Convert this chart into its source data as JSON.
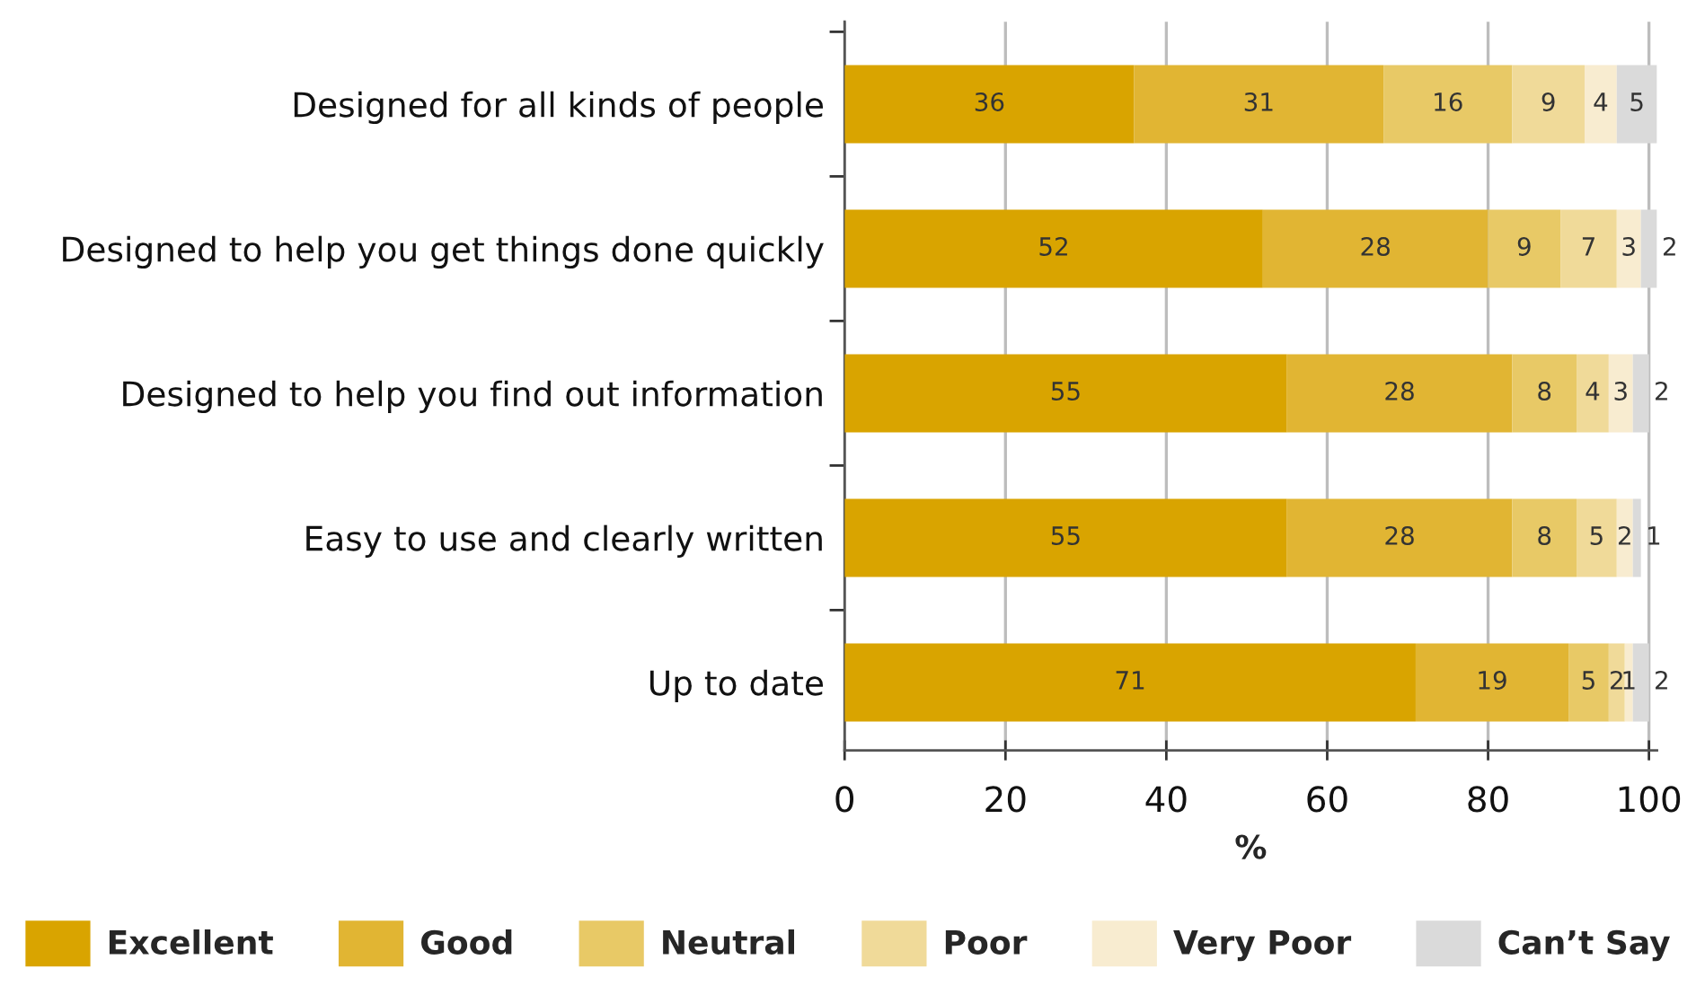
{
  "chart_data": {
    "type": "bar",
    "orientation": "horizontal",
    "stacked": true,
    "categories": [
      "Designed for all kinds of people",
      "Designed to help you get things done quickly",
      "Designed to help you find out information",
      "Easy to use and clearly written",
      "Up to date"
    ],
    "series": [
      {
        "name": "Excellent",
        "color": "#d9a400",
        "values": [
          36,
          52,
          55,
          55,
          71
        ]
      },
      {
        "name": "Good",
        "color": "#e1b533",
        "values": [
          31,
          28,
          28,
          28,
          19
        ]
      },
      {
        "name": "Neutral",
        "color": "#e8c966",
        "values": [
          16,
          9,
          8,
          8,
          5
        ]
      },
      {
        "name": "Poor",
        "color": "#f0da99",
        "values": [
          9,
          7,
          4,
          5,
          2
        ]
      },
      {
        "name": "Very Poor",
        "color": "#f8ecd0",
        "values": [
          4,
          3,
          3,
          2,
          1
        ]
      },
      {
        "name": "Can’t Say",
        "color": "#dadada",
        "values": [
          5,
          2,
          2,
          1,
          2
        ]
      }
    ],
    "xlabel": "%",
    "xlim": [
      0,
      101
    ],
    "xticks": [
      0,
      20,
      40,
      60,
      80,
      100
    ],
    "grid": "x",
    "legend": "bottom",
    "data_labels": true
  }
}
